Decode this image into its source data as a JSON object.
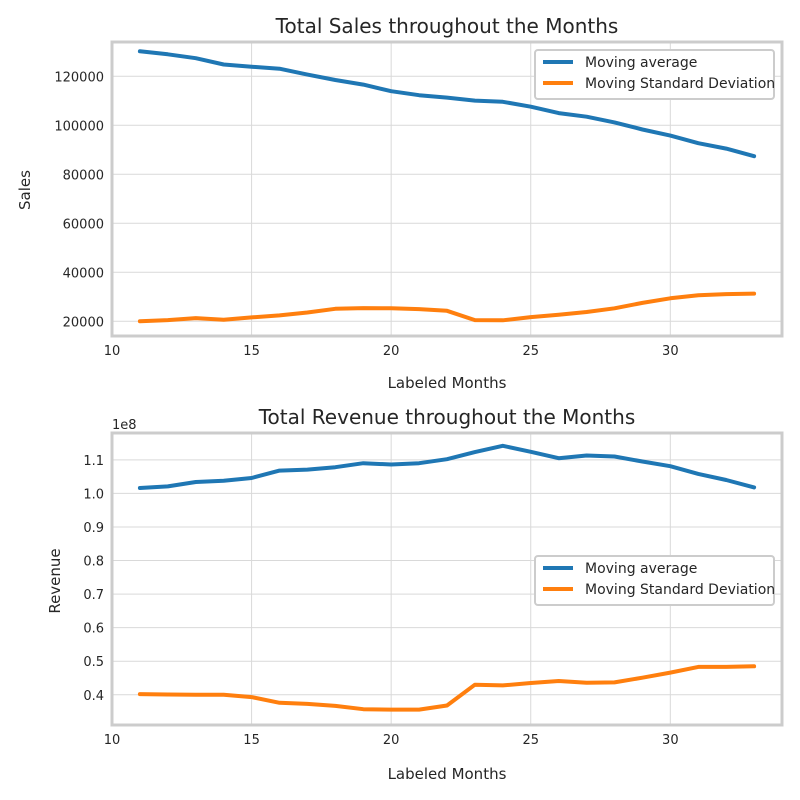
{
  "chart_data": [
    {
      "type": "line",
      "title": "Total Sales throughout the Months",
      "xlabel": "Labeled Months",
      "ylabel": "Sales",
      "offset_label": "",
      "xlim": [
        10,
        34
      ],
      "ylim": [
        14000,
        134000
      ],
      "xticks": [
        10,
        15,
        20,
        25,
        30
      ],
      "xtick_labels": [
        "10",
        "15",
        "20",
        "25",
        "30"
      ],
      "yticks": [
        20000,
        40000,
        60000,
        80000,
        100000,
        120000
      ],
      "ytick_labels": [
        "20000",
        "40000",
        "60000",
        "80000",
        "100000",
        "120000"
      ],
      "legend_position": "upper-right",
      "x": [
        11,
        12,
        13,
        14,
        15,
        16,
        17,
        18,
        19,
        20,
        21,
        22,
        23,
        24,
        25,
        26,
        27,
        28,
        29,
        30,
        31,
        32,
        33
      ],
      "series": [
        {
          "name": "Moving average",
          "color": "#1f77b4",
          "values": [
            130200,
            129000,
            127400,
            124800,
            123900,
            123100,
            120700,
            118500,
            116600,
            113900,
            112300,
            111300,
            110100,
            109600,
            107600,
            105000,
            103500,
            101200,
            98300,
            95800,
            92700,
            90500,
            87400
          ]
        },
        {
          "name": "Moving Standard Deviation",
          "color": "#ff7f0e",
          "values": [
            20000,
            20500,
            21300,
            20600,
            21600,
            22400,
            23600,
            25100,
            25400,
            25300,
            25000,
            24300,
            20500,
            20400,
            21700,
            22700,
            23800,
            25300,
            27500,
            29400,
            30600,
            31100,
            31300
          ]
        }
      ]
    },
    {
      "type": "line",
      "title": "Total Revenue throughout the Months",
      "xlabel": "Labeled Months",
      "ylabel": "Revenue",
      "offset_label": "1e8",
      "xlim": [
        10,
        34
      ],
      "ylim": [
        0.31,
        1.18
      ],
      "xticks": [
        10,
        15,
        20,
        25,
        30
      ],
      "xtick_labels": [
        "10",
        "15",
        "20",
        "25",
        "30"
      ],
      "yticks": [
        0.4,
        0.5,
        0.6,
        0.7,
        0.8,
        0.9,
        1.0,
        1.1
      ],
      "ytick_labels": [
        "0.4",
        "0.5",
        "0.6",
        "0.7",
        "0.8",
        "0.9",
        "1.0",
        "1.1"
      ],
      "legend_position": "center-right",
      "x": [
        11,
        12,
        13,
        14,
        15,
        16,
        17,
        18,
        19,
        20,
        21,
        22,
        23,
        24,
        25,
        26,
        27,
        28,
        29,
        30,
        31,
        32,
        33
      ],
      "series": [
        {
          "name": "Moving average",
          "color": "#1f77b4",
          "values": [
            1.016,
            1.021,
            1.034,
            1.038,
            1.046,
            1.068,
            1.071,
            1.078,
            1.09,
            1.086,
            1.09,
            1.102,
            1.123,
            1.142,
            1.124,
            1.105,
            1.113,
            1.11,
            1.095,
            1.081,
            1.058,
            1.04,
            1.018
          ]
        },
        {
          "name": "Moving Standard Deviation",
          "color": "#ff7f0e",
          "values": [
            0.402,
            0.401,
            0.4,
            0.4,
            0.393,
            0.376,
            0.373,
            0.367,
            0.357,
            0.356,
            0.356,
            0.368,
            0.43,
            0.428,
            0.435,
            0.441,
            0.436,
            0.437,
            0.451,
            0.466,
            0.483,
            0.483,
            0.485
          ]
        }
      ]
    }
  ]
}
